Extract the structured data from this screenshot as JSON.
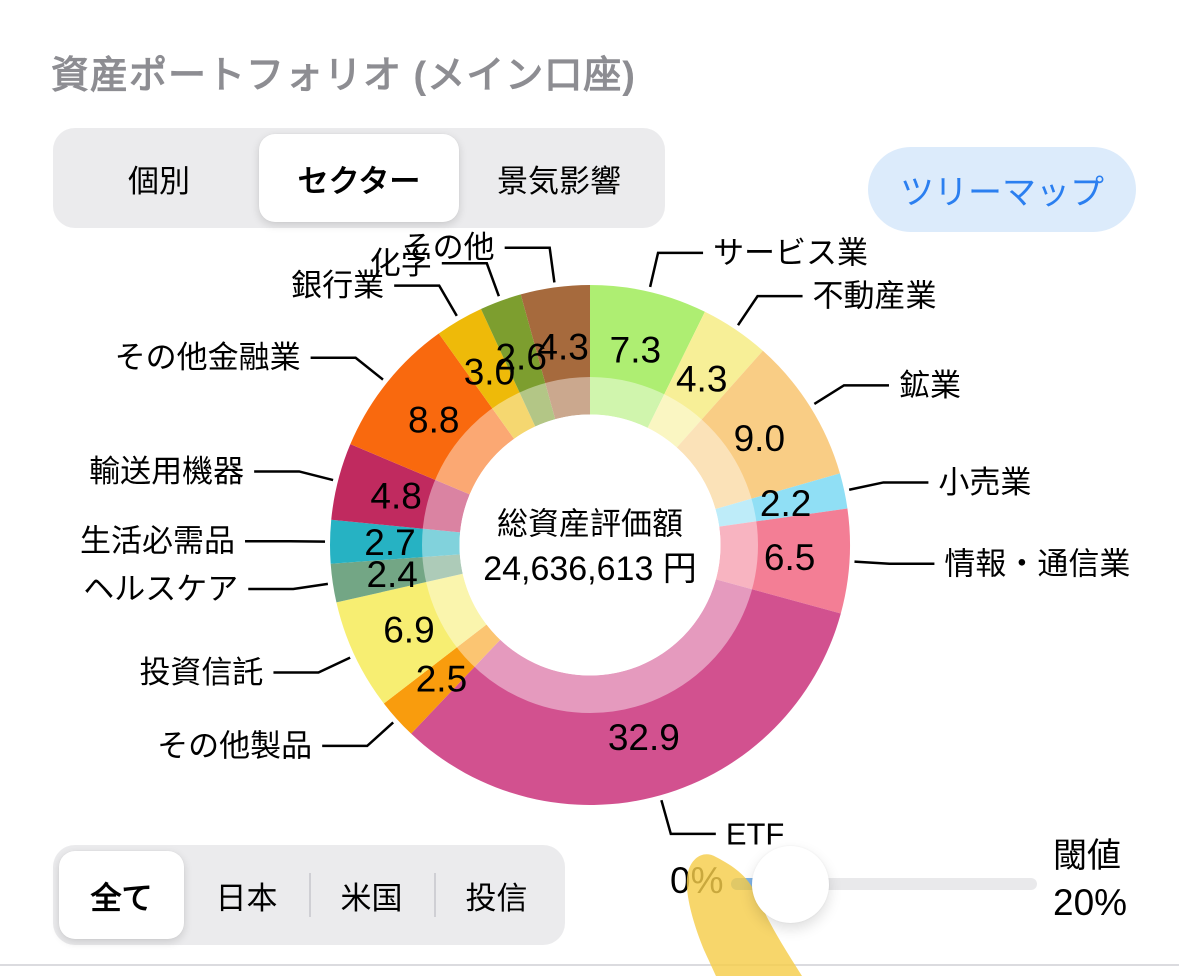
{
  "page": {
    "title": "資産ポートフォリオ (メイン口座)"
  },
  "view_tabs": {
    "items": [
      {
        "label": "個別",
        "selected": false
      },
      {
        "label": "セクター",
        "selected": true
      },
      {
        "label": "景気影響",
        "selected": false
      }
    ]
  },
  "treemap_button": {
    "label": "ツリーマップ"
  },
  "chart_data": {
    "type": "pie",
    "variant": "donut",
    "direction": "clockwise",
    "start_angle_deg": 0,
    "unit": "percent",
    "center": {
      "title": "総資産評価額",
      "value": "24,636,613 円"
    },
    "segments": [
      {
        "label": "サービス業",
        "value": 7.3,
        "color": "#aeee72"
      },
      {
        "label": "不動産業",
        "value": 4.3,
        "color": "#f7ef97"
      },
      {
        "label": "鉱業",
        "value": 9.0,
        "color": "#f9cd85"
      },
      {
        "label": "小売業",
        "value": 2.2,
        "color": "#90dff5"
      },
      {
        "label": "情報・通信業",
        "value": 6.5,
        "color": "#f37e95"
      },
      {
        "label": "ETF",
        "value": 32.9,
        "color": "#d2518f"
      },
      {
        "label": "その他製品",
        "value": 2.5,
        "color": "#f99c0d"
      },
      {
        "label": "投資信託",
        "value": 6.9,
        "color": "#f7ee72"
      },
      {
        "label": "ヘルスケア",
        "value": 2.4,
        "color": "#73a685"
      },
      {
        "label": "生活必需品",
        "value": 2.7,
        "color": "#26b2c3"
      },
      {
        "label": "輸送用機器",
        "value": 4.8,
        "color": "#c02a5f"
      },
      {
        "label": "その他金融業",
        "value": 8.8,
        "color": "#f9690e"
      },
      {
        "label": "銀行業",
        "value": 3.0,
        "color": "#eeba09"
      },
      {
        "label": "化学",
        "value": 2.6,
        "color": "#7d9e2f"
      },
      {
        "label": "その他",
        "value": 4.3,
        "color": "#a66a3d"
      }
    ]
  },
  "region_tabs": {
    "items": [
      {
        "label": "全て",
        "selected": true
      },
      {
        "label": "日本",
        "selected": false
      },
      {
        "label": "米国",
        "selected": false
      },
      {
        "label": "投信",
        "selected": false
      }
    ]
  },
  "threshold_slider": {
    "min_label": "0%",
    "title": "閾値",
    "value_label": "20%",
    "fill_color": "#7fb3e8"
  },
  "colors": {
    "accent_blue": "#2b7ff0",
    "treemap_pill_bg": "#dcebfb",
    "title_gray": "#8d8d92",
    "annotation_yellow": "#f5cd4b"
  }
}
